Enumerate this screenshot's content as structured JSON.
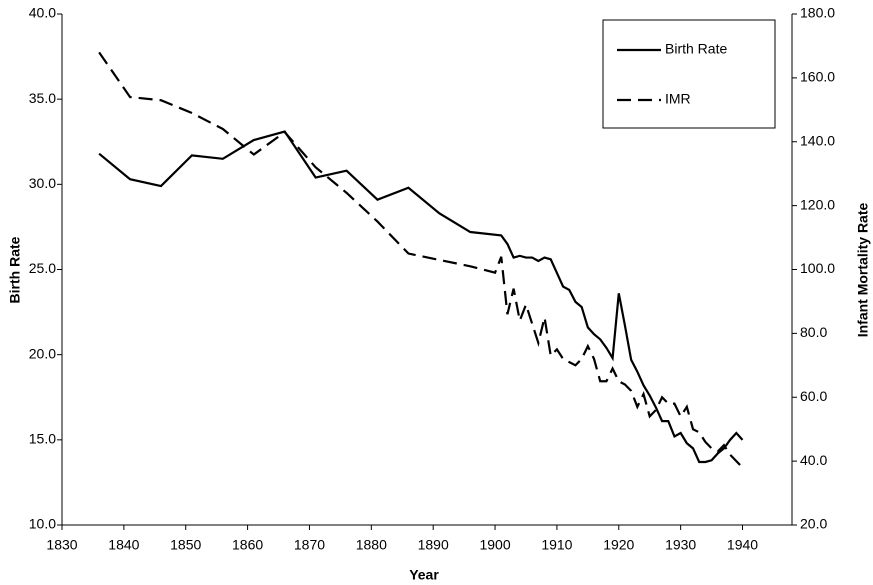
{
  "chart_data": {
    "type": "line",
    "x_label": "Year",
    "y_label": "Birth Rate",
    "y2_label": "Infant Mortality Rate",
    "xlim": [
      1830,
      1948
    ],
    "xticks": [
      1830,
      1840,
      1850,
      1860,
      1870,
      1880,
      1890,
      1900,
      1910,
      1920,
      1930,
      1940
    ],
    "ylim": [
      10,
      40
    ],
    "yticks": [
      {
        "value": 10,
        "label": "10.0"
      },
      {
        "value": 15,
        "label": "15.0"
      },
      {
        "value": 20,
        "label": "20.0"
      },
      {
        "value": 25,
        "label": "25.0"
      },
      {
        "value": 30,
        "label": "30.0"
      },
      {
        "value": 35,
        "label": "35.0"
      },
      {
        "value": 40,
        "label": "40.0"
      }
    ],
    "y2lim": [
      20,
      180
    ],
    "y2ticks": [
      {
        "value": 20,
        "label": "20.0"
      },
      {
        "value": 40,
        "label": "40.0"
      },
      {
        "value": 60,
        "label": "60.0"
      },
      {
        "value": 80,
        "label": "80.0"
      },
      {
        "value": 100,
        "label": "100.0"
      },
      {
        "value": 120,
        "label": "120.0"
      },
      {
        "value": 140,
        "label": "140.0"
      },
      {
        "value": 160,
        "label": "160.0"
      },
      {
        "value": 180,
        "label": "180.0"
      }
    ],
    "grid": false,
    "legend": "upper right",
    "series": [
      {
        "name": "Birth Rate",
        "color": "#000000",
        "line_style": "solid",
        "x": [
          1836,
          1841,
          1846,
          1851,
          1856,
          1861,
          1866,
          1871,
          1876,
          1881,
          1886,
          1891,
          1896,
          1901,
          1902,
          1903,
          1904,
          1905,
          1906,
          1907,
          1908,
          1909,
          1910,
          1911,
          1912,
          1913,
          1914,
          1915,
          1916,
          1917,
          1918,
          1919,
          1920,
          1921,
          1922,
          1923,
          1924,
          1925,
          1926,
          1927,
          1928,
          1929,
          1930,
          1931,
          1932,
          1933,
          1934,
          1935,
          1936,
          1937,
          1938,
          1939,
          1940
        ],
        "values": [
          31.8,
          30.3,
          29.9,
          31.7,
          31.5,
          32.6,
          33.1,
          30.4,
          30.8,
          29.1,
          29.8,
          28.3,
          27.2,
          27.0,
          26.5,
          25.7,
          25.8,
          25.7,
          25.7,
          25.5,
          25.7,
          25.6,
          24.8,
          24.0,
          23.8,
          23.1,
          22.8,
          21.6,
          21.2,
          20.9,
          20.4,
          19.8,
          23.6,
          21.7,
          19.7,
          19.0,
          18.2,
          17.6,
          16.9,
          16.1,
          16.1,
          15.2,
          15.4,
          14.8,
          14.5,
          13.7,
          13.7,
          13.8,
          14.2,
          14.5,
          15.0,
          15.4,
          15.0
        ]
      },
      {
        "name": "IMR",
        "color": "#000000",
        "line_style": "dashed",
        "axis": "y2",
        "x": [
          1836,
          1841,
          1846,
          1851,
          1856,
          1861,
          1866,
          1871,
          1876,
          1881,
          1886,
          1891,
          1896,
          1900,
          1901,
          1902,
          1903,
          1904,
          1905,
          1906,
          1907,
          1908,
          1909,
          1910,
          1911,
          1912,
          1913,
          1914,
          1915,
          1916,
          1917,
          1918,
          1919,
          1920,
          1921,
          1922,
          1923,
          1924,
          1925,
          1926,
          1927,
          1928,
          1929,
          1930,
          1931,
          1932,
          1933,
          1934,
          1935,
          1936,
          1937,
          1938,
          1939,
          1940
        ],
        "values": [
          168,
          154,
          153,
          149,
          144,
          136,
          143,
          132,
          124,
          115,
          105,
          103,
          101,
          99,
          104,
          86,
          94,
          84,
          89,
          83,
          77,
          85,
          73,
          75,
          72,
          71,
          70,
          72,
          76,
          72,
          65,
          65,
          69,
          65,
          64,
          62,
          57,
          61,
          54,
          56,
          60,
          58,
          58,
          54,
          57,
          50,
          49,
          46,
          44,
          43,
          45,
          42,
          40,
          38
        ]
      }
    ]
  }
}
